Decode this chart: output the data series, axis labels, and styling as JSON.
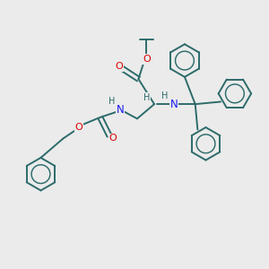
{
  "bg_color": "#ebebeb",
  "bond_color": "#2d6b6b",
  "N_color": "#1a1aee",
  "O_color": "#dd0000",
  "H_color": "#2d6b6b",
  "lw": 1.4,
  "ring_r": 0.62,
  "figsize": [
    3.0,
    3.0
  ],
  "dpi": 100,
  "xlim": [
    0,
    10
  ],
  "ylim": [
    0,
    10
  ]
}
